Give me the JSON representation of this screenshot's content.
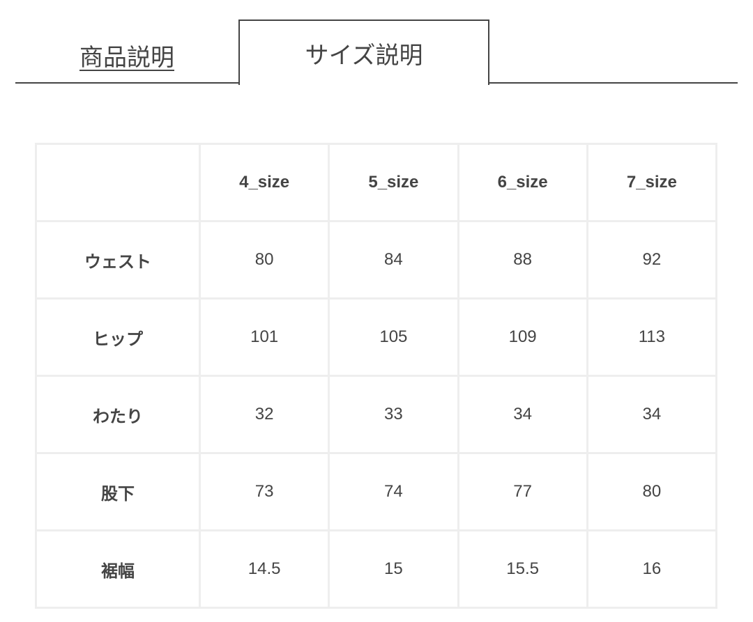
{
  "tabs": [
    {
      "label": "商品説明",
      "active": false
    },
    {
      "label": "サイズ説明",
      "active": true
    }
  ],
  "size_table": {
    "headers": [
      "",
      "4_size",
      "5_size",
      "6_size",
      "7_size"
    ],
    "rows": [
      {
        "label": "ウェスト",
        "values": [
          "80",
          "84",
          "88",
          "92"
        ]
      },
      {
        "label": "ヒップ",
        "values": [
          "101",
          "105",
          "109",
          "113"
        ]
      },
      {
        "label": "わたり",
        "values": [
          "32",
          "33",
          "34",
          "34"
        ]
      },
      {
        "label": "股下",
        "values": [
          "73",
          "74",
          "77",
          "80"
        ]
      },
      {
        "label": "裾幅",
        "values": [
          "14.5",
          "15",
          "15.5",
          "16"
        ]
      }
    ]
  }
}
